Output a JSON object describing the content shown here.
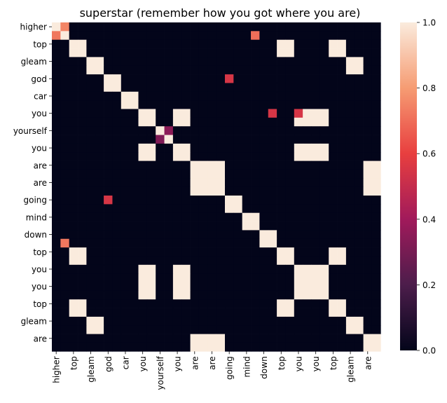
{
  "chart_data": {
    "type": "heatmap",
    "title": "superstar (remember how you got where you are)",
    "tokens": [
      "higher",
      "higher",
      "top",
      "top",
      "gleam",
      "gleam",
      "god",
      "god",
      "car",
      "car",
      "you",
      "you",
      "yourself",
      "yourself",
      "you",
      "you",
      "are",
      "are",
      "are",
      "are",
      "going",
      "going",
      "mind",
      "mind",
      "down",
      "down",
      "top",
      "top",
      "you",
      "you",
      "you",
      "you",
      "top",
      "top",
      "gleam",
      "gleam",
      "are",
      "are"
    ],
    "x_tick_labels": [
      "higher",
      "top",
      "gleam",
      "god",
      "car",
      "you",
      "yourself",
      "you",
      "are",
      "are",
      "going",
      "mind",
      "down",
      "top",
      "you",
      "you",
      "top",
      "gleam",
      "are"
    ],
    "y_tick_labels": [
      "higher",
      "top",
      "gleam",
      "god",
      "car",
      "you",
      "yourself",
      "you",
      "are",
      "are",
      "going",
      "mind",
      "down",
      "top",
      "you",
      "you",
      "top",
      "gleam",
      "are"
    ],
    "value_range": [
      0.0,
      1.0
    ],
    "colorbar_ticks": [
      "0.0",
      "0.2",
      "0.4",
      "0.6",
      "0.8",
      "1.0"
    ],
    "colormap": [
      "#03051a",
      "#4c1d4b",
      "#a11a5b",
      "#e83f3f",
      "#f69c73",
      "#faebdd"
    ],
    "overrides": [
      {
        "row": 0,
        "col": 1,
        "value": 0.75
      },
      {
        "row": 1,
        "col": 0,
        "value": 0.72
      },
      {
        "row": 1,
        "col": 23,
        "value": 0.7
      },
      {
        "row": 25,
        "col": 1,
        "value": 0.72
      },
      {
        "row": 6,
        "col": 20,
        "value": 0.55
      },
      {
        "row": 20,
        "col": 6,
        "value": 0.55
      },
      {
        "row": 10,
        "col": 25,
        "value": 0.55
      },
      {
        "row": 10,
        "col": 28,
        "value": 0.55
      },
      {
        "row": 12,
        "col": 13,
        "value": 0.35
      },
      {
        "row": 13,
        "col": 12,
        "value": 0.32
      }
    ]
  }
}
